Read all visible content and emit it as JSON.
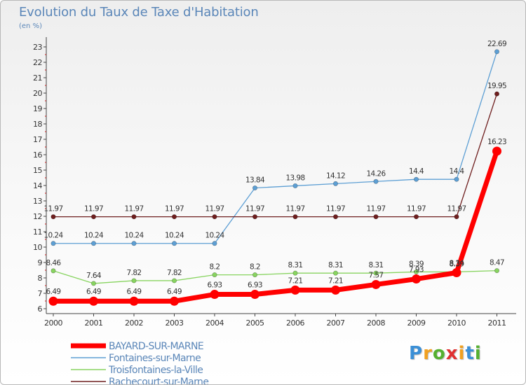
{
  "chart_data": {
    "type": "line",
    "title": "Evolution du Taux de Taxe d'Habitation",
    "subtitle": "(en %)",
    "xlabel": "",
    "ylabel": "",
    "categories": [
      "2000",
      "2001",
      "2002",
      "2003",
      "2004",
      "2005",
      "2006",
      "2007",
      "2008",
      "2009",
      "2010",
      "2011"
    ],
    "y_ticks": [
      6,
      7,
      8,
      9,
      10,
      11,
      12,
      13,
      14,
      15,
      16,
      17,
      18,
      19,
      20,
      21,
      22,
      23
    ],
    "ylim": [
      6,
      23.8
    ],
    "grid": false,
    "legend_position": "bottom-left",
    "series": [
      {
        "name": "BAYARD-SUR-MARNE",
        "color": "#ff0000",
        "emphasis": true,
        "values": [
          6.49,
          6.49,
          6.49,
          6.49,
          6.93,
          6.93,
          7.21,
          7.21,
          7.57,
          7.93,
          8.34,
          16.23
        ],
        "labels": [
          "6.49",
          "6.49",
          "6.49",
          "6.49",
          "6.93",
          "6.93",
          "7.21",
          "7.21",
          "7.57",
          "7.93",
          "8.34",
          "16.23"
        ]
      },
      {
        "name": "Fontaines-sur-Marne",
        "color": "#5d9fd4",
        "values": [
          10.24,
          10.24,
          10.24,
          10.24,
          10.24,
          13.84,
          13.98,
          14.12,
          14.26,
          14.4,
          14.4,
          22.69
        ],
        "labels": [
          "10.24",
          "10.24",
          "10.24",
          "10.24",
          "10.24",
          "13.84",
          "13.98",
          "14.12",
          "14.26",
          "14.4",
          "14.4",
          "22.69"
        ]
      },
      {
        "name": "Troisfontaines-la-Ville",
        "color": "#88d460",
        "values": [
          8.46,
          7.64,
          7.82,
          7.82,
          8.2,
          8.2,
          8.31,
          8.31,
          8.31,
          8.39,
          8.39,
          8.47
        ],
        "labels": [
          "8.46",
          "7.64",
          "7.82",
          "7.82",
          "8.2",
          "8.2",
          "8.31",
          "8.31",
          "8.31",
          "8.39",
          "8.39",
          "8.47"
        ]
      },
      {
        "name": "Rachecourt-sur-Marne",
        "color": "#6e1e1e",
        "values": [
          11.97,
          11.97,
          11.97,
          11.97,
          11.97,
          11.97,
          11.97,
          11.97,
          11.97,
          11.97,
          11.97,
          19.95
        ],
        "labels": [
          "11.97",
          "11.97",
          "11.97",
          "11.97",
          "11.97",
          "11.97",
          "11.97",
          "11.97",
          "11.97",
          "11.97",
          "11.97",
          "19.95"
        ]
      }
    ]
  },
  "logo": {
    "letters": [
      "P",
      "r",
      "o",
      "x",
      "i",
      "t",
      "i"
    ],
    "colors": [
      "#3b8fd6",
      "#f0a020",
      "#55b030",
      "#e03030",
      "#f0a020",
      "#3b8fd6",
      "#55b030"
    ]
  }
}
